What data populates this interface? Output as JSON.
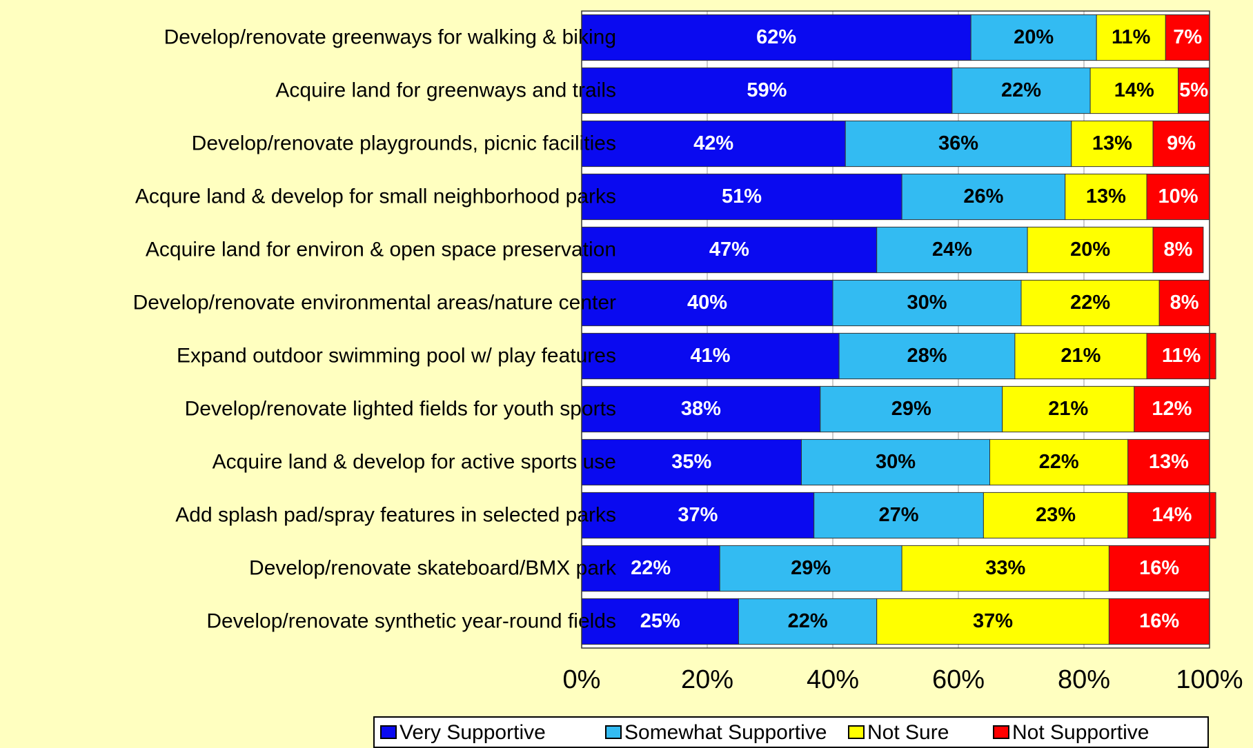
{
  "chart_data": {
    "type": "stacked_bar",
    "orientation": "horizontal",
    "categories": [
      "Develop/renovate greenways for walking & biking",
      "Acquire land for greenways and trails",
      "Develop/renovate playgrounds, picnic facilities",
      "Acqure land & develop for small neighborhood parks",
      "Acquire land for environ & open space preservation",
      "Develop/renovate environmental areas/nature center",
      "Expand outdoor swimming pool w/ play features",
      "Develop/renovate lighted fields for youth sports",
      "Acquire land & develop for active sports use",
      "Add splash pad/spray features in selected parks",
      "Develop/renovate skateboard/BMX park",
      "Develop/renovate synthetic year-round fields"
    ],
    "series": [
      {
        "name": "Very Supportive",
        "color": "#0a0af0",
        "label_color": "#ffffff",
        "values": [
          62,
          59,
          42,
          51,
          47,
          40,
          41,
          38,
          35,
          37,
          22,
          25
        ],
        "value_labels": [
          "62%",
          "59%",
          "42%",
          "51%",
          "47%",
          "40%",
          "41%",
          "38%",
          "35%",
          "37%",
          "22%",
          "25%"
        ]
      },
      {
        "name": "Somewhat Supportive",
        "color": "#33bbf2",
        "label_color": "#000000",
        "values": [
          20,
          22,
          36,
          26,
          24,
          30,
          28,
          29,
          30,
          27,
          29,
          22
        ],
        "value_labels": [
          "20%",
          "22%",
          "36%",
          "26%",
          "24%",
          "30%",
          "28%",
          "29%",
          "30%",
          "27%",
          "29%",
          "22%"
        ]
      },
      {
        "name": "Not Sure",
        "color": "#ffff00",
        "label_color": "#000000",
        "values": [
          11,
          14,
          13,
          13,
          20,
          22,
          21,
          21,
          22,
          23,
          33,
          37
        ],
        "value_labels": [
          "11%",
          "14%",
          "13%",
          "13%",
          "20%",
          "22%",
          "21%",
          "21%",
          "22%",
          "23%",
          "33%",
          "37%"
        ]
      },
      {
        "name": "Not Supportive",
        "color": "#ff0000",
        "label_color": "#ffffff",
        "values": [
          7,
          5,
          9,
          10,
          8,
          8,
          11,
          12,
          13,
          14,
          16,
          16
        ],
        "value_labels": [
          "7%",
          "5%",
          "9%",
          "10%",
          "8%",
          "8%",
          "11%",
          "12%",
          "13%",
          "14%",
          "16%",
          "16%"
        ]
      }
    ],
    "xlim": [
      0,
      100
    ],
    "xticks": [
      {
        "value": 0,
        "label": "0%"
      },
      {
        "value": 20,
        "label": "20%"
      },
      {
        "value": 40,
        "label": "40%"
      },
      {
        "value": 60,
        "label": "60%"
      },
      {
        "value": 80,
        "label": "80%"
      },
      {
        "value": 100,
        "label": "100%"
      }
    ],
    "grid": true,
    "legend": "bottom"
  }
}
